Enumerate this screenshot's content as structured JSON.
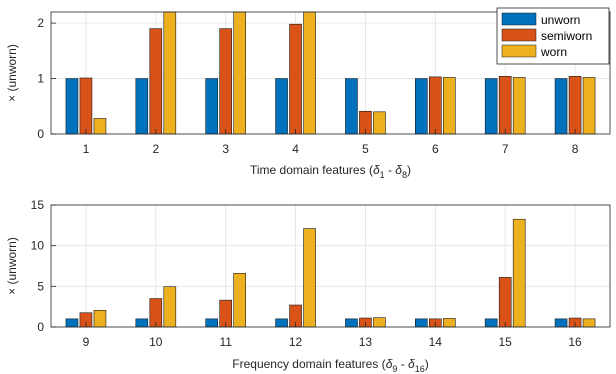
{
  "chart_data": [
    {
      "type": "bar",
      "categories": [
        "1",
        "2",
        "3",
        "4",
        "5",
        "6",
        "7",
        "8"
      ],
      "series": [
        {
          "name": "unworn",
          "values": [
            1,
            1,
            1,
            1,
            1,
            1,
            1,
            1
          ]
        },
        {
          "name": "semiworn",
          "values": [
            1.01,
            1.9,
            1.9,
            1.98,
            0.41,
            1.03,
            1.04,
            1.04
          ]
        },
        {
          "name": "worn",
          "values": [
            0.28,
            2.2,
            2.2,
            2.25,
            0.4,
            1.02,
            1.02,
            1.02
          ]
        }
      ],
      "xlabel_parts": [
        "Time domain features (",
        "δ",
        "1",
        " - ",
        "δ",
        "8",
        ")"
      ],
      "ylabel": "× (unworn)",
      "ylim": [
        0,
        2.2
      ],
      "yticks": [
        0,
        1,
        2
      ],
      "grid": true,
      "legend": "top-right"
    },
    {
      "type": "bar",
      "categories": [
        "9",
        "10",
        "11",
        "12",
        "13",
        "14",
        "15",
        "16"
      ],
      "series": [
        {
          "name": "unworn",
          "values": [
            1,
            1,
            1,
            1,
            1,
            1,
            1,
            1
          ]
        },
        {
          "name": "semiworn",
          "values": [
            1.75,
            3.5,
            3.3,
            2.7,
            1.1,
            1.0,
            6.1,
            1.1
          ]
        },
        {
          "name": "worn",
          "values": [
            2.05,
            4.95,
            6.6,
            12.1,
            1.15,
            1.05,
            13.25,
            1.0
          ]
        }
      ],
      "xlabel_parts": [
        "Frequency domain features (",
        "δ",
        "9",
        " - ",
        "δ",
        "16",
        ")"
      ],
      "ylabel": "× (unworn)",
      "ylim": [
        0,
        15
      ],
      "yticks": [
        0,
        5,
        10,
        15
      ],
      "grid": true
    }
  ],
  "legend": {
    "items": [
      "unworn",
      "semiworn",
      "worn"
    ],
    "position": "top-right"
  },
  "colors": {
    "unworn": "#0072bd",
    "semiworn": "#d95319",
    "worn": "#edb120"
  }
}
